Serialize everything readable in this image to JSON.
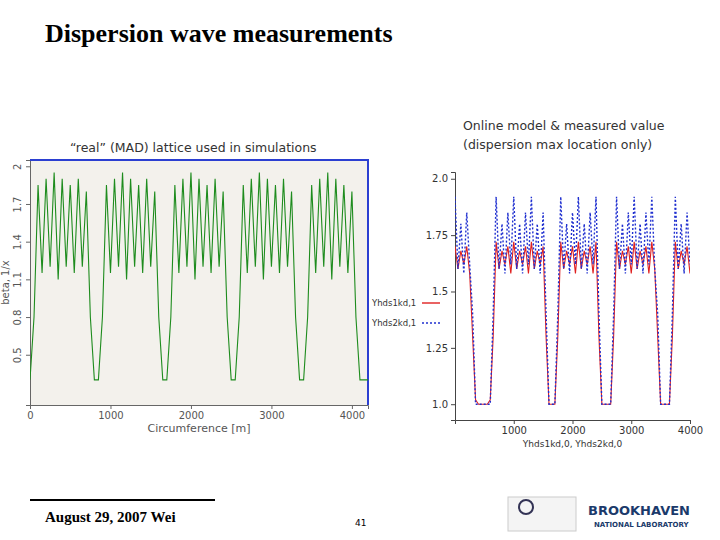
{
  "slide": {
    "title": "Dispersion wave measurements",
    "footer_date": "August 29, 2007 Wei",
    "page_number": "41",
    "logo_text": [
      "BROOKHAVEN",
      "NATIONAL LABORATORY"
    ]
  },
  "chart_data": [
    {
      "type": "line",
      "title": "“real” (MAD) lattice used in simulations",
      "x_label": "Circumference [m]",
      "y_label": "beta, 1/x",
      "xlim": [
        0,
        4200
      ],
      "xticks": [
        0,
        1000,
        2000,
        3000,
        4000
      ],
      "ylim": [
        0.1,
        2.05
      ],
      "yticks": [
        0.5,
        0.8,
        1.1,
        1.4,
        1.7,
        2
      ],
      "x": [
        0,
        50,
        100,
        150,
        200,
        250,
        300,
        350,
        400,
        450,
        500,
        550,
        600,
        650,
        700,
        750,
        800,
        850,
        900,
        950,
        1000,
        1050,
        1100,
        1150,
        1200,
        1250,
        1300,
        1350,
        1400,
        1450,
        1500,
        1550,
        1600,
        1650,
        1700,
        1750,
        1800,
        1850,
        1900,
        1950,
        2000,
        2050,
        2100,
        2150,
        2200,
        2250,
        2300,
        2350,
        2400,
        2450,
        2500,
        2550,
        2600,
        2650,
        2700,
        2750,
        2800,
        2850,
        2900,
        2950,
        3000,
        3050,
        3100,
        3150,
        3200,
        3250,
        3300,
        3350,
        3400,
        3450,
        3500,
        3550,
        3600,
        3650,
        3700,
        3750,
        3800,
        3850,
        3900,
        3950,
        4000,
        4050,
        4100,
        4150,
        4200
      ],
      "series": [
        {
          "color": "#1e8c1e",
          "line_style": "solid",
          "values": [
            0.3,
            0.8,
            1.85,
            1.15,
            1.9,
            1.2,
            1.95,
            1.1,
            1.9,
            1.2,
            1.85,
            1.15,
            1.9,
            1.2,
            1.8,
            0.8,
            0.3,
            0.3,
            0.8,
            1.85,
            1.15,
            1.9,
            1.2,
            1.95,
            1.1,
            1.9,
            1.2,
            1.85,
            1.15,
            1.9,
            1.2,
            1.8,
            0.8,
            0.3,
            0.3,
            0.8,
            1.85,
            1.15,
            1.9,
            1.2,
            1.95,
            1.1,
            1.9,
            1.2,
            1.85,
            1.15,
            1.9,
            1.2,
            1.8,
            0.8,
            0.3,
            0.3,
            0.8,
            1.85,
            1.15,
            1.9,
            1.2,
            1.95,
            1.1,
            1.9,
            1.2,
            1.85,
            1.15,
            1.9,
            1.2,
            1.8,
            0.8,
            0.3,
            0.3,
            0.8,
            1.85,
            1.15,
            1.9,
            1.2,
            1.95,
            1.1,
            1.9,
            1.2,
            1.85,
            1.15,
            1.8,
            0.8,
            0.3,
            0.3,
            0.3
          ]
        }
      ]
    },
    {
      "type": "line",
      "title": "Online model & measured value",
      "subtitle": "(dispersion max location only)",
      "x_label": "Yhds1kd,0, Yhds2kd,0",
      "legend": "left",
      "xlim": [
        0,
        4000
      ],
      "xticks": [
        1000,
        2000,
        3000,
        4000
      ],
      "ylim": [
        0.93,
        2.03
      ],
      "yticks": [
        {
          "value": 1,
          "label": "1.0"
        },
        1.25,
        1.5,
        1.75,
        {
          "value": 2,
          "label": "2.0"
        }
      ],
      "x": [
        0,
        50,
        100,
        150,
        200,
        250,
        300,
        350,
        400,
        450,
        500,
        550,
        600,
        650,
        700,
        750,
        800,
        850,
        900,
        950,
        1000,
        1050,
        1100,
        1150,
        1200,
        1250,
        1300,
        1350,
        1400,
        1450,
        1500,
        1550,
        1600,
        1650,
        1700,
        1750,
        1800,
        1850,
        1900,
        1950,
        2000,
        2050,
        2100,
        2150,
        2200,
        2250,
        2300,
        2350,
        2400,
        2450,
        2500,
        2550,
        2600,
        2650,
        2700,
        2750,
        2800,
        2850,
        2900,
        2950,
        3000,
        3050,
        3100,
        3150,
        3200,
        3250,
        3300,
        3350,
        3400,
        3450,
        3500,
        3550,
        3600,
        3650,
        3700,
        3750,
        3800,
        3850,
        3900,
        3950,
        4000
      ],
      "series": [
        {
          "name": "Yhds1kd,1",
          "color": "#e02020",
          "line_style": "solid",
          "values": [
            1.7,
            1.6,
            1.68,
            1.62,
            1.7,
            1.58,
            1.3,
            1.02,
            1.0,
            1.0,
            1.0,
            1.0,
            1.02,
            1.3,
            1.72,
            1.6,
            1.68,
            1.62,
            1.7,
            1.58,
            1.72,
            1.6,
            1.68,
            1.62,
            1.7,
            1.58,
            1.72,
            1.6,
            1.68,
            1.62,
            1.7,
            1.3,
            1.0,
            1.0,
            1.0,
            1.3,
            1.72,
            1.6,
            1.68,
            1.62,
            1.7,
            1.58,
            1.72,
            1.6,
            1.68,
            1.62,
            1.7,
            1.58,
            1.72,
            1.3,
            1.0,
            1.0,
            1.0,
            1.0,
            1.3,
            1.72,
            1.6,
            1.68,
            1.62,
            1.7,
            1.58,
            1.72,
            1.6,
            1.68,
            1.62,
            1.7,
            1.58,
            1.72,
            1.6,
            1.3,
            1.0,
            1.0,
            1.0,
            1.0,
            1.3,
            1.72,
            1.6,
            1.68,
            1.62,
            1.7,
            1.58
          ]
        },
        {
          "name": "Yhds2kd,1",
          "color": "#2030d0",
          "line_style": "dotted",
          "values": [
            1.92,
            1.6,
            1.8,
            1.58,
            1.85,
            1.62,
            1.4,
            1.0,
            1.0,
            1.0,
            1.0,
            1.0,
            1.0,
            1.4,
            1.92,
            1.6,
            1.8,
            1.58,
            1.85,
            1.62,
            1.92,
            1.6,
            1.8,
            1.58,
            1.85,
            1.62,
            1.92,
            1.6,
            1.8,
            1.58,
            1.85,
            1.4,
            1.0,
            1.0,
            1.0,
            1.4,
            1.92,
            1.6,
            1.8,
            1.58,
            1.85,
            1.62,
            1.92,
            1.6,
            1.8,
            1.58,
            1.85,
            1.62,
            1.92,
            1.4,
            1.0,
            1.0,
            1.0,
            1.0,
            1.4,
            1.92,
            1.6,
            1.8,
            1.58,
            1.85,
            1.62,
            1.92,
            1.6,
            1.8,
            1.58,
            1.85,
            1.62,
            1.92,
            1.6,
            1.4,
            1.0,
            1.0,
            1.0,
            1.0,
            1.4,
            1.92,
            1.6,
            1.8,
            1.58,
            1.85,
            1.62
          ]
        }
      ]
    }
  ]
}
